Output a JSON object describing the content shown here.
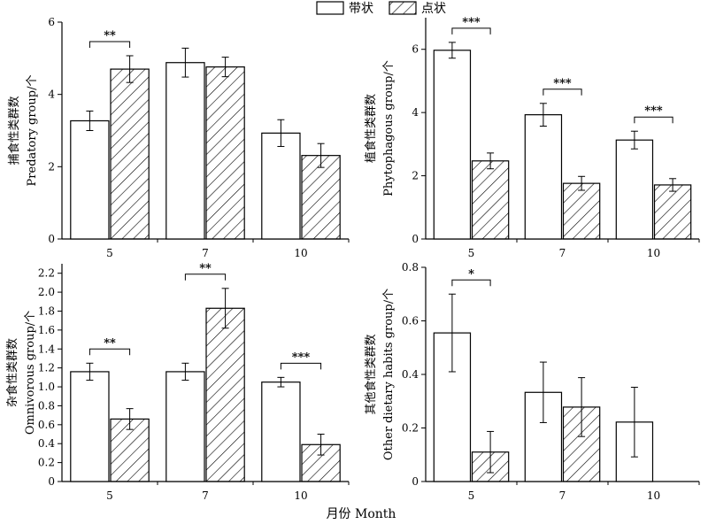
{
  "legend": [
    {
      "label": "带状",
      "pattern": "plain"
    },
    {
      "label": "点状",
      "pattern": "hatch"
    }
  ],
  "xlabel": "月份 Month",
  "colors": {
    "stroke": "#000000",
    "fill": "#ffffff"
  },
  "chart_data": [
    {
      "type": "bar",
      "panel": "top-left",
      "categories": [
        "5",
        "7",
        "10"
      ],
      "ylabel_cn": "捕食性类群数",
      "ylabel_en": "Predatory group/个",
      "ylim": [
        0,
        6
      ],
      "yticks": [
        0,
        2,
        4,
        6
      ],
      "yticklabels": [
        "0",
        "2",
        "4",
        "6"
      ],
      "series": [
        {
          "name": "带状",
          "values": [
            3.27,
            4.88,
            2.93
          ],
          "errors": [
            0.27,
            0.4,
            0.37
          ]
        },
        {
          "name": "点状",
          "values": [
            4.7,
            4.76,
            2.31
          ],
          "errors": [
            0.37,
            0.27,
            0.33
          ]
        }
      ],
      "significance": [
        {
          "category": 0,
          "label": "**"
        }
      ]
    },
    {
      "type": "bar",
      "panel": "top-right",
      "categories": [
        "5",
        "7",
        "10"
      ],
      "ylabel_cn": "植食性类群数",
      "ylabel_en": "Phytophagous group/个",
      "ylim": [
        0,
        7
      ],
      "yticks": [
        0,
        2,
        4,
        6
      ],
      "yticklabels": [
        "0",
        "2",
        "4",
        "6"
      ],
      "series": [
        {
          "name": "带状",
          "values": [
            5.97,
            3.93,
            3.13
          ],
          "errors": [
            0.25,
            0.36,
            0.28
          ]
        },
        {
          "name": "点状",
          "values": [
            2.47,
            1.76,
            1.71
          ],
          "errors": [
            0.25,
            0.22,
            0.2
          ]
        }
      ],
      "significance": [
        {
          "category": 0,
          "label": "***"
        },
        {
          "category": 1,
          "label": "***"
        },
        {
          "category": 2,
          "label": "***"
        }
      ]
    },
    {
      "type": "bar",
      "panel": "bottom-left",
      "categories": [
        "5",
        "7",
        "10"
      ],
      "ylabel_cn": "杂食性类群数",
      "ylabel_en": "Omnivorous group/个",
      "ylim": [
        0,
        2.3
      ],
      "yticks": [
        0,
        0.2,
        0.4,
        0.6,
        0.8,
        1.0,
        1.2,
        1.4,
        1.6,
        1.8,
        2.0,
        2.2
      ],
      "yticklabels": [
        "0",
        "0.2",
        "0.4",
        "0.6",
        "0.8",
        "1.0",
        "1.2",
        "1.4",
        "1.6",
        "1.8",
        "2.0",
        "2.2"
      ],
      "series": [
        {
          "name": "带状",
          "values": [
            1.16,
            1.16,
            1.05
          ],
          "errors": [
            0.09,
            0.09,
            0.05
          ]
        },
        {
          "name": "点状",
          "values": [
            0.66,
            1.83,
            0.39
          ],
          "errors": [
            0.11,
            0.21,
            0.11
          ]
        }
      ],
      "significance": [
        {
          "category": 0,
          "label": "**"
        },
        {
          "category": 1,
          "label": "**"
        },
        {
          "category": 2,
          "label": "***"
        }
      ]
    },
    {
      "type": "bar",
      "panel": "bottom-right",
      "categories": [
        "5",
        "7",
        "10"
      ],
      "ylabel_cn": "其他食性类群数",
      "ylabel_en": "Other dietary habits group/个",
      "ylim": [
        0,
        0.8
      ],
      "yticks": [
        0,
        0.2,
        0.4,
        0.6,
        0.8
      ],
      "yticklabels": [
        "0",
        "0.2",
        "0.4",
        "0.6",
        "0.8"
      ],
      "series": [
        {
          "name": "带状",
          "values": [
            0.555,
            0.333,
            0.222
          ],
          "errors": [
            0.145,
            0.113,
            0.13
          ]
        },
        {
          "name": "点状",
          "values": [
            0.11,
            0.278,
            0
          ],
          "errors": [
            0.077,
            0.11,
            0
          ]
        }
      ],
      "significance": [
        {
          "category": 0,
          "label": "*"
        }
      ]
    }
  ]
}
